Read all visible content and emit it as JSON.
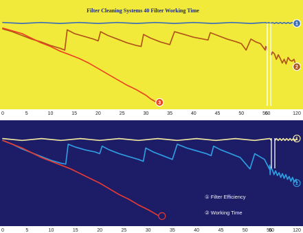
{
  "figure": {
    "top_panel_bg": "#f2ea3a",
    "bottom_panel_bg": "#1d1c67",
    "break_mark_color": "#ffffff"
  },
  "chart_data": [
    {
      "type": "line",
      "title": "Filter Cleaning Systems 40 Filter Working Time",
      "xlabel": "",
      "ylabel": "",
      "x_tick_labels": [
        "0",
        "5",
        "10",
        "15",
        "20",
        "25",
        "30",
        "35",
        "40",
        "45",
        "50",
        "55",
        "60",
        "120"
      ],
      "axis_break_after": "55",
      "grid": false,
      "series": [
        {
          "marker": "1",
          "color": "#3d6fb6",
          "points": [
            [
              0,
              0.92
            ],
            [
              4,
              0.91
            ],
            [
              8,
              0.92
            ],
            [
              12,
              0.91
            ],
            [
              16,
              0.92
            ],
            [
              20,
              0.91
            ],
            [
              24,
              0.92
            ],
            [
              28,
              0.91
            ],
            [
              32,
              0.92
            ],
            [
              36,
              0.91
            ],
            [
              40,
              0.92
            ],
            [
              44,
              0.91
            ],
            [
              48,
              0.92
            ],
            [
              52,
              0.91
            ],
            [
              56,
              0.92
            ],
            [
              59,
              0.91
            ],
            [
              62,
              0.92
            ],
            [
              66,
              0.91
            ],
            [
              70,
              0.92
            ],
            [
              74,
              0.91
            ],
            [
              78,
              0.92
            ],
            [
              82,
              0.91
            ],
            [
              86,
              0.92
            ],
            [
              90,
              0.91
            ],
            [
              94,
              0.92
            ],
            [
              98,
              0.91
            ],
            [
              102,
              0.92
            ],
            [
              106,
              0.91
            ],
            [
              110,
              0.92
            ],
            [
              114,
              0.91
            ],
            [
              118,
              0.92
            ],
            [
              120,
              0.91
            ]
          ]
        },
        {
          "marker": "2",
          "color": "#b0541a",
          "points": [
            [
              0,
              0.85
            ],
            [
              2,
              0.82
            ],
            [
              4,
              0.78
            ],
            [
              6,
              0.74
            ],
            [
              8,
              0.71
            ],
            [
              10,
              0.67
            ],
            [
              12,
              0.64
            ],
            [
              13,
              0.62
            ],
            [
              13.5,
              0.84
            ],
            [
              15,
              0.8
            ],
            [
              17,
              0.77
            ],
            [
              19,
              0.74
            ],
            [
              20,
              0.72
            ],
            [
              20.5,
              0.82
            ],
            [
              22,
              0.78
            ],
            [
              24,
              0.74
            ],
            [
              26,
              0.7
            ],
            [
              28,
              0.67
            ],
            [
              29,
              0.66
            ],
            [
              29.5,
              0.79
            ],
            [
              31,
              0.75
            ],
            [
              33,
              0.71
            ],
            [
              35,
              0.68
            ],
            [
              36,
              0.82
            ],
            [
              38,
              0.79
            ],
            [
              40,
              0.76
            ],
            [
              42,
              0.74
            ],
            [
              43,
              0.73
            ],
            [
              43.5,
              0.81
            ],
            [
              45,
              0.78
            ],
            [
              47,
              0.74
            ],
            [
              49,
              0.71
            ],
            [
              50,
              0.69
            ],
            [
              51,
              0.62
            ],
            [
              52,
              0.74
            ],
            [
              53,
              0.71
            ],
            [
              54,
              0.69
            ],
            [
              55,
              0.62
            ],
            [
              56,
              0.66
            ],
            [
              58,
              0.65
            ],
            [
              60,
              0.6
            ],
            [
              62,
              0.58
            ],
            [
              64,
              0.66
            ],
            [
              66,
              0.6
            ],
            [
              68,
              0.57
            ],
            [
              70,
              0.6
            ],
            [
              74,
              0.58
            ],
            [
              78,
              0.52
            ],
            [
              82,
              0.57
            ],
            [
              86,
              0.53
            ],
            [
              90,
              0.48
            ],
            [
              94,
              0.52
            ],
            [
              98,
              0.47
            ],
            [
              102,
              0.54
            ],
            [
              106,
              0.51
            ],
            [
              110,
              0.5
            ],
            [
              114,
              0.52
            ],
            [
              118,
              0.46
            ],
            [
              120,
              0.44
            ]
          ]
        },
        {
          "marker": "3",
          "color": "#ea4521",
          "points": [
            [
              0,
              0.86
            ],
            [
              2,
              0.83
            ],
            [
              4,
              0.8
            ],
            [
              6,
              0.75
            ],
            [
              8,
              0.7
            ],
            [
              10,
              0.66
            ],
            [
              12,
              0.61
            ],
            [
              14,
              0.57
            ],
            [
              16,
              0.53
            ],
            [
              18,
              0.48
            ],
            [
              20,
              0.42
            ],
            [
              22,
              0.36
            ],
            [
              24,
              0.3
            ],
            [
              26,
              0.24
            ],
            [
              28,
              0.19
            ],
            [
              30,
              0.13
            ],
            [
              31,
              0.09
            ],
            [
              32,
              0.06
            ]
          ]
        }
      ]
    },
    {
      "type": "line",
      "title": "",
      "xlabel": "",
      "ylabel": "",
      "x_tick_labels": [
        "0",
        "5",
        "10",
        "15",
        "20",
        "25",
        "30",
        "35",
        "40",
        "45",
        "50",
        "55",
        "60",
        "120"
      ],
      "axis_break_after": "55",
      "grid": false,
      "legend": [
        "① Filter Efficiency",
        "② Working Time"
      ],
      "series": [
        {
          "marker": "1",
          "color": "#f0e6a0",
          "points": [
            [
              0,
              0.88
            ],
            [
              4,
              0.86
            ],
            [
              8,
              0.88
            ],
            [
              12,
              0.86
            ],
            [
              16,
              0.88
            ],
            [
              20,
              0.86
            ],
            [
              24,
              0.88
            ],
            [
              28,
              0.86
            ],
            [
              32,
              0.88
            ],
            [
              36,
              0.86
            ],
            [
              40,
              0.88
            ],
            [
              44,
              0.86
            ],
            [
              48,
              0.88
            ],
            [
              52,
              0.86
            ],
            [
              56,
              0.88
            ],
            [
              60,
              0.86
            ],
            [
              64,
              0.88
            ],
            [
              68,
              0.86
            ],
            [
              72,
              0.88
            ],
            [
              76,
              0.86
            ],
            [
              80,
              0.88
            ],
            [
              84,
              0.86
            ],
            [
              88,
              0.88
            ],
            [
              92,
              0.86
            ],
            [
              96,
              0.88
            ],
            [
              100,
              0.86
            ],
            [
              104,
              0.88
            ],
            [
              108,
              0.86
            ],
            [
              112,
              0.88
            ],
            [
              116,
              0.86
            ],
            [
              120,
              0.88
            ]
          ]
        },
        {
          "marker": "2",
          "color": "#2f9be0",
          "points": [
            [
              0,
              0.86
            ],
            [
              2,
              0.82
            ],
            [
              4,
              0.77
            ],
            [
              6,
              0.73
            ],
            [
              8,
              0.69
            ],
            [
              10,
              0.65
            ],
            [
              12,
              0.62
            ],
            [
              13,
              0.61
            ],
            [
              13.5,
              0.82
            ],
            [
              15,
              0.79
            ],
            [
              17,
              0.76
            ],
            [
              19,
              0.74
            ],
            [
              20,
              0.72
            ],
            [
              20.5,
              0.8
            ],
            [
              22,
              0.76
            ],
            [
              24,
              0.72
            ],
            [
              26,
              0.69
            ],
            [
              28,
              0.66
            ],
            [
              29,
              0.64
            ],
            [
              29.5,
              0.78
            ],
            [
              31,
              0.74
            ],
            [
              33,
              0.7
            ],
            [
              35,
              0.66
            ],
            [
              36,
              0.82
            ],
            [
              38,
              0.78
            ],
            [
              40,
              0.75
            ],
            [
              42,
              0.72
            ],
            [
              43,
              0.7
            ],
            [
              43.5,
              0.8
            ],
            [
              45,
              0.76
            ],
            [
              47,
              0.72
            ],
            [
              49,
              0.68
            ],
            [
              50,
              0.62
            ],
            [
              51,
              0.56
            ],
            [
              52,
              0.72
            ],
            [
              53,
              0.69
            ],
            [
              54,
              0.66
            ],
            [
              55,
              0.56
            ],
            [
              56,
              0.6
            ],
            [
              57,
              0.5
            ],
            [
              58,
              0.58
            ],
            [
              62,
              0.55
            ],
            [
              66,
              0.5
            ],
            [
              70,
              0.54
            ],
            [
              74,
              0.49
            ],
            [
              78,
              0.52
            ],
            [
              82,
              0.47
            ],
            [
              86,
              0.51
            ],
            [
              90,
              0.46
            ],
            [
              94,
              0.5
            ],
            [
              98,
              0.45
            ],
            [
              102,
              0.48
            ],
            [
              106,
              0.43
            ],
            [
              110,
              0.47
            ],
            [
              114,
              0.42
            ],
            [
              118,
              0.45
            ],
            [
              120,
              0.41
            ]
          ]
        },
        {
          "marker": "",
          "color": "#e23b34",
          "points": [
            [
              0,
              0.86
            ],
            [
              2,
              0.82
            ],
            [
              4,
              0.78
            ],
            [
              6,
              0.73
            ],
            [
              8,
              0.68
            ],
            [
              10,
              0.64
            ],
            [
              12,
              0.6
            ],
            [
              14,
              0.56
            ],
            [
              16,
              0.51
            ],
            [
              18,
              0.46
            ],
            [
              20,
              0.41
            ],
            [
              22,
              0.35
            ],
            [
              24,
              0.29
            ],
            [
              26,
              0.24
            ],
            [
              28,
              0.18
            ],
            [
              30,
              0.13
            ],
            [
              31,
              0.1
            ],
            [
              32,
              0.07
            ]
          ]
        }
      ]
    }
  ]
}
